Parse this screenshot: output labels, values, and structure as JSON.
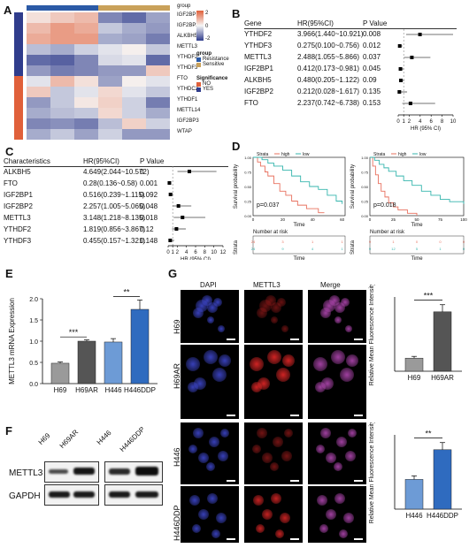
{
  "panels": {
    "A": "A",
    "B": "B",
    "C": "C",
    "D": "D",
    "E": "E",
    "F": "F",
    "G": "G"
  },
  "heatmap": {
    "genes": [
      "IGF2BP1",
      "IGF2BP2",
      "ALKBH5",
      "METTL3",
      "YTHDF2",
      "YTHDF3",
      "FTO",
      "YTHDC2",
      "YTHDF1",
      "METTL14",
      "IGF2BP3",
      "WTAP"
    ],
    "group_label": "group",
    "legend_group_title": "group",
    "legend_groups": [
      "Resistance",
      "Sensitive"
    ],
    "legend_group_colors": [
      "#2b5aa6",
      "#c9a15a"
    ],
    "legend_sig_title": "Significance",
    "legend_sig": [
      "NO",
      "YES"
    ],
    "legend_sig_colors": [
      "#e0603a",
      "#2f3c8c"
    ],
    "scale_ticks": [
      "2",
      "0",
      "-2"
    ],
    "sig_colors": [
      "#2f3c8c",
      "#2f3c8c",
      "#2f3c8c",
      "#2f3c8c",
      "#2f3c8c",
      "#2f3c8c",
      "#e0603a",
      "#e0603a",
      "#e0603a",
      "#e0603a",
      "#e0603a",
      "#e0603a"
    ],
    "values": [
      [
        0.3,
        0.6,
        0.8,
        -1.2,
        -1.5,
        -0.9
      ],
      [
        0.8,
        1.2,
        1.0,
        -0.5,
        -0.8,
        -1.0
      ],
      [
        1.0,
        1.2,
        1.2,
        -0.8,
        -0.9,
        -1.3
      ],
      [
        -0.6,
        -0.8,
        -0.4,
        -0.2,
        0.1,
        -0.5
      ],
      [
        -1.5,
        -1.6,
        -1.2,
        -0.3,
        -0.2,
        -1.5
      ],
      [
        -1.0,
        -1.3,
        -1.2,
        -1.0,
        -1.0,
        0.6
      ],
      [
        -0.2,
        0.8,
        0.3,
        -0.9,
        0.1,
        -0.2
      ],
      [
        0.6,
        -0.5,
        -0.2,
        0.4,
        -0.2,
        -0.5
      ],
      [
        -1.0,
        -0.5,
        0.2,
        0.5,
        -0.4,
        -1.3
      ],
      [
        -0.8,
        -0.6,
        -0.5,
        0.4,
        -0.4,
        -0.8
      ],
      [
        -1.2,
        -1.1,
        -1.3,
        -0.6,
        0.5,
        -0.4
      ],
      [
        -0.8,
        -0.5,
        -0.9,
        -0.4,
        -1.0,
        -1.0
      ]
    ]
  },
  "forestB": {
    "header": {
      "gene": "Gene",
      "hr": "HR(95%CI)",
      "p": "P Value"
    },
    "rows": [
      {
        "gene": "YTHDF2",
        "hr": "3.966(1.440~10.921)",
        "p": "0.008",
        "est": 3.966,
        "lo": 1.44,
        "hi": 10.921
      },
      {
        "gene": "YTHDF3",
        "hr": "0.275(0.100~0.756)",
        "p": "0.012",
        "est": 0.275,
        "lo": 0.1,
        "hi": 0.756
      },
      {
        "gene": "METTL3",
        "hr": "2.488(1.055~5.866)",
        "p": "0.037",
        "est": 2.488,
        "lo": 1.055,
        "hi": 5.866
      },
      {
        "gene": "IGF2BP1",
        "hr": "0.412(0.173~0.981)",
        "p": "0.045",
        "est": 0.412,
        "lo": 0.173,
        "hi": 0.981
      },
      {
        "gene": "ALKBH5",
        "hr": "0.480(0.205~1.122)",
        "p": "0.09",
        "est": 0.48,
        "lo": 0.205,
        "hi": 1.122
      },
      {
        "gene": "IGF2BP2",
        "hr": "0.212(0.028~1.617)",
        "p": "0.135",
        "est": 0.212,
        "lo": 0.028,
        "hi": 1.617
      },
      {
        "gene": "FTO",
        "hr": "2.237(0.742~6.738)",
        "p": "0.153",
        "est": 2.237,
        "lo": 0.742,
        "hi": 6.738
      }
    ],
    "ticks": [
      "0",
      "1",
      "2",
      "4",
      "6",
      "8",
      "10"
    ],
    "xlabel": "HR (95% CI)"
  },
  "forestC": {
    "header": {
      "gene": "Characteristics",
      "hr": "HR(95%CI)",
      "p": "P Value"
    },
    "rows": [
      {
        "gene": "ALKBH5",
        "hr": "4.649(2.044~10.572)",
        "p": "0",
        "est": 4.649,
        "lo": 2.044,
        "hi": 10.572
      },
      {
        "gene": "FTO",
        "hr": "0.28(0.136~0.58)",
        "p": "0.001",
        "est": 0.28,
        "lo": 0.136,
        "hi": 0.58
      },
      {
        "gene": "IGF2BP1",
        "hr": "0.516(0.239~1.115)",
        "p": "0.092",
        "est": 0.516,
        "lo": 0.239,
        "hi": 1.115
      },
      {
        "gene": "IGF2BP2",
        "hr": "2.257(1.005~5.065)",
        "p": "0.048",
        "est": 2.257,
        "lo": 1.005,
        "hi": 5.065
      },
      {
        "gene": "METTL3",
        "hr": "3.148(1.218~8.135)",
        "p": "0.018",
        "est": 3.148,
        "lo": 1.218,
        "hi": 8.135
      },
      {
        "gene": "YTHDF2",
        "hr": "1.819(0.856~3.867)",
        "p": "0.12",
        "est": 1.819,
        "lo": 0.856,
        "hi": 3.867
      },
      {
        "gene": "YTHDF3",
        "hr": "0.455(0.157~1.321)",
        "p": "0.148",
        "est": 0.455,
        "lo": 0.157,
        "hi": 1.321
      }
    ],
    "ticks": [
      "0",
      "1",
      "2",
      "4",
      "6",
      "8",
      "10",
      "12"
    ],
    "xlabel": "HR (95% CI)"
  },
  "survival": {
    "ylabel": "Survival probability",
    "xlabel": "Time",
    "risk_title": "Number at risk",
    "strata_axis": "Strata",
    "yticks": [
      "1.00",
      "0.75",
      "0.50",
      "0.25",
      "0.00"
    ],
    "left": {
      "legend": {
        "title": "Strata",
        "high": "high",
        "low": "low"
      },
      "p": "p=0.037",
      "xticks": [
        "0",
        "20",
        "40",
        "60"
      ],
      "risk_high": [
        "24",
        "3",
        "1",
        "1"
      ],
      "risk_low": [
        "24",
        "9",
        "4",
        "1"
      ],
      "high_color": "#e8705e",
      "low_color": "#35b5ad"
    },
    "right": {
      "legend": {
        "title": "Strata",
        "high": "high",
        "low": "low"
      },
      "p": "p=0.018",
      "xticks": [
        "0",
        "25",
        "50",
        "75",
        "100"
      ],
      "risk_high": [
        "9",
        "1",
        "0",
        "0",
        "0"
      ],
      "risk_low": [
        "9",
        "12",
        "5",
        "1",
        "0"
      ],
      "high_color": "#e8705e",
      "low_color": "#35b5ad"
    }
  },
  "barE": {
    "ylabel": "METTL3 mRNA Expression",
    "yticks": [
      "0.0",
      "0.5",
      "1.0",
      "1.5",
      "2.0"
    ],
    "categories": [
      "H69",
      "H69AR",
      "H446",
      "H446DDP"
    ],
    "values": [
      0.48,
      1.0,
      0.98,
      1.75
    ],
    "errors": [
      0.03,
      0.03,
      0.08,
      0.22
    ],
    "colors": [
      "#9a9a9a",
      "#555555",
      "#6d9bd6",
      "#2f6bbf"
    ],
    "sig1": "***",
    "sig2": "**"
  },
  "blotF": {
    "lanes_left": [
      "H69",
      "H69AR"
    ],
    "lanes_right": [
      "H446",
      "H446DDP"
    ],
    "rows": [
      "METTL3",
      "GAPDH"
    ]
  },
  "microscopy": {
    "columns": [
      "DAPI",
      "METTL3",
      "Merge"
    ],
    "rows": [
      "H69",
      "H69AR",
      "H446",
      "H446DDP"
    ]
  },
  "barG1": {
    "ylabel": "Relative Mean Fluorescence Intensity",
    "categories": [
      "H69",
      "H69AR"
    ],
    "values": [
      0.22,
      1.0
    ],
    "errors": [
      0.03,
      0.12
    ],
    "colors": [
      "#9a9a9a",
      "#555555"
    ],
    "sig": "***"
  },
  "barG2": {
    "ylabel": "Relative Mean Fluorescence Intensity",
    "categories": [
      "H446",
      "H446DDP"
    ],
    "values": [
      0.5,
      1.0
    ],
    "errors": [
      0.06,
      0.12
    ],
    "colors": [
      "#6d9bd6",
      "#2f6bbf"
    ],
    "sig": "**"
  }
}
